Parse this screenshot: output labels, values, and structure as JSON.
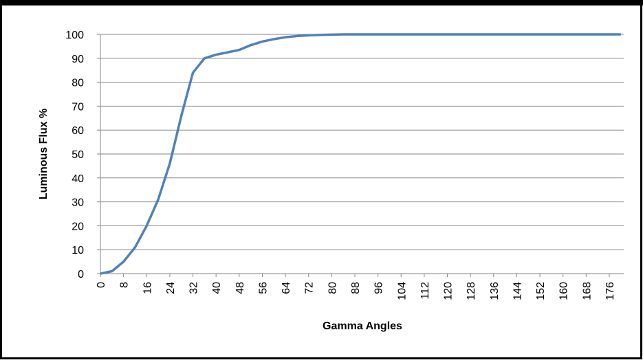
{
  "chart_data": {
    "type": "line",
    "x_label": "Gamma Angles",
    "y_label": "Luminous Flux %",
    "x": [
      0,
      4,
      8,
      12,
      16,
      20,
      24,
      28,
      32,
      36,
      40,
      44,
      48,
      52,
      56,
      60,
      64,
      68,
      72,
      76,
      80,
      84,
      90,
      100,
      110,
      120,
      130,
      140,
      150,
      160,
      170,
      180
    ],
    "series": [
      {
        "name": "Luminous Flux",
        "color": "#4f81bd",
        "values": [
          0,
          1,
          5,
          11,
          20,
          31,
          46,
          66,
          84,
          90,
          91.5,
          92.5,
          93.5,
          95.5,
          97,
          98,
          98.8,
          99.3,
          99.6,
          99.8,
          99.9,
          100,
          100,
          100,
          100,
          100,
          100,
          100,
          100,
          100,
          100,
          100
        ]
      }
    ],
    "xlim": [
      0,
      181
    ],
    "xticks": [
      0,
      8,
      16,
      24,
      32,
      40,
      48,
      56,
      64,
      72,
      80,
      88,
      96,
      104,
      112,
      120,
      128,
      136,
      144,
      152,
      160,
      168,
      176
    ],
    "ylim": [
      0,
      100
    ],
    "yticks": [
      0,
      10,
      20,
      30,
      40,
      50,
      60,
      70,
      80,
      90,
      100
    ],
    "grid": true
  }
}
